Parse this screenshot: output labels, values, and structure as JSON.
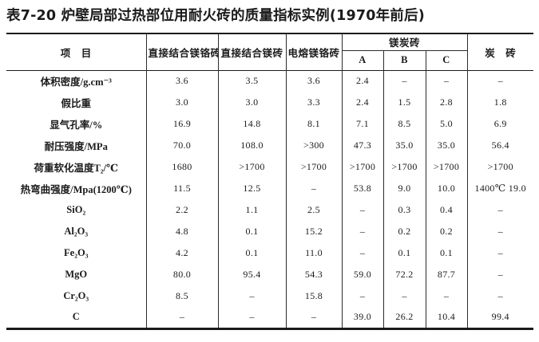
{
  "title": "表7-20  炉壁局部过热部位用耐火砖的质量指标实例(1970年前后)",
  "colors": {
    "text": "#1b1b1b",
    "border": "#2b2b2b",
    "background": "#ffffff"
  },
  "table": {
    "header": {
      "item_label": "项　目",
      "columns": [
        "直接结合镁铬砖",
        "直接结合镁砖",
        "电熔镁铬砖"
      ],
      "group": {
        "label": "镁炭砖",
        "sub_columns": [
          "A",
          "B",
          "C"
        ]
      },
      "last_column": "炭　砖"
    },
    "rows": [
      {
        "label": "体积密度/g.cm⁻³",
        "values": [
          "3.6",
          "3.5",
          "3.6",
          "2.4",
          "–",
          "–",
          "–"
        ]
      },
      {
        "label": "假比重",
        "values": [
          "3.0",
          "3.0",
          "3.3",
          "2.4",
          "1.5",
          "2.8",
          "1.8"
        ]
      },
      {
        "label": "显气孔率/%",
        "values": [
          "16.9",
          "14.8",
          "8.1",
          "7.1",
          "8.5",
          "5.0",
          "6.9"
        ]
      },
      {
        "label": "耐压强度/MPa",
        "values": [
          "70.0",
          "108.0",
          ">300",
          "47.3",
          "35.0",
          "35.0",
          "56.4"
        ]
      },
      {
        "label": "荷重软化温度T₂/℃",
        "values": [
          "1680",
          ">1700",
          ">1700",
          ">1700",
          ">1700",
          ">1700",
          ">1700"
        ]
      },
      {
        "label": "热弯曲强度/Mpa(1200℃)",
        "values": [
          "11.5",
          "12.5",
          "–",
          "53.8",
          "9.0",
          "10.0",
          "1400℃ 19.0"
        ]
      },
      {
        "label": "SiO₂",
        "values": [
          "2.2",
          "1.1",
          "2.5",
          "–",
          "0.3",
          "0.4",
          "–"
        ]
      },
      {
        "label": "Al₂O₃",
        "values": [
          "4.8",
          "0.1",
          "15.2",
          "–",
          "0.2",
          "0.2",
          "–"
        ]
      },
      {
        "label": "Fe₂O₃",
        "values": [
          "4.2",
          "0.1",
          "11.0",
          "–",
          "0.1",
          "0.1",
          "–"
        ]
      },
      {
        "label": "MgO",
        "values": [
          "80.0",
          "95.4",
          "54.3",
          "59.0",
          "72.2",
          "87.7",
          "–"
        ]
      },
      {
        "label": "Cr₂O₃",
        "values": [
          "8.5",
          "–",
          "15.8",
          "–",
          "–",
          "–",
          "–"
        ]
      },
      {
        "label": "C",
        "values": [
          "–",
          "–",
          "–",
          "39.0",
          "26.2",
          "10.4",
          "99.4"
        ]
      }
    ]
  }
}
